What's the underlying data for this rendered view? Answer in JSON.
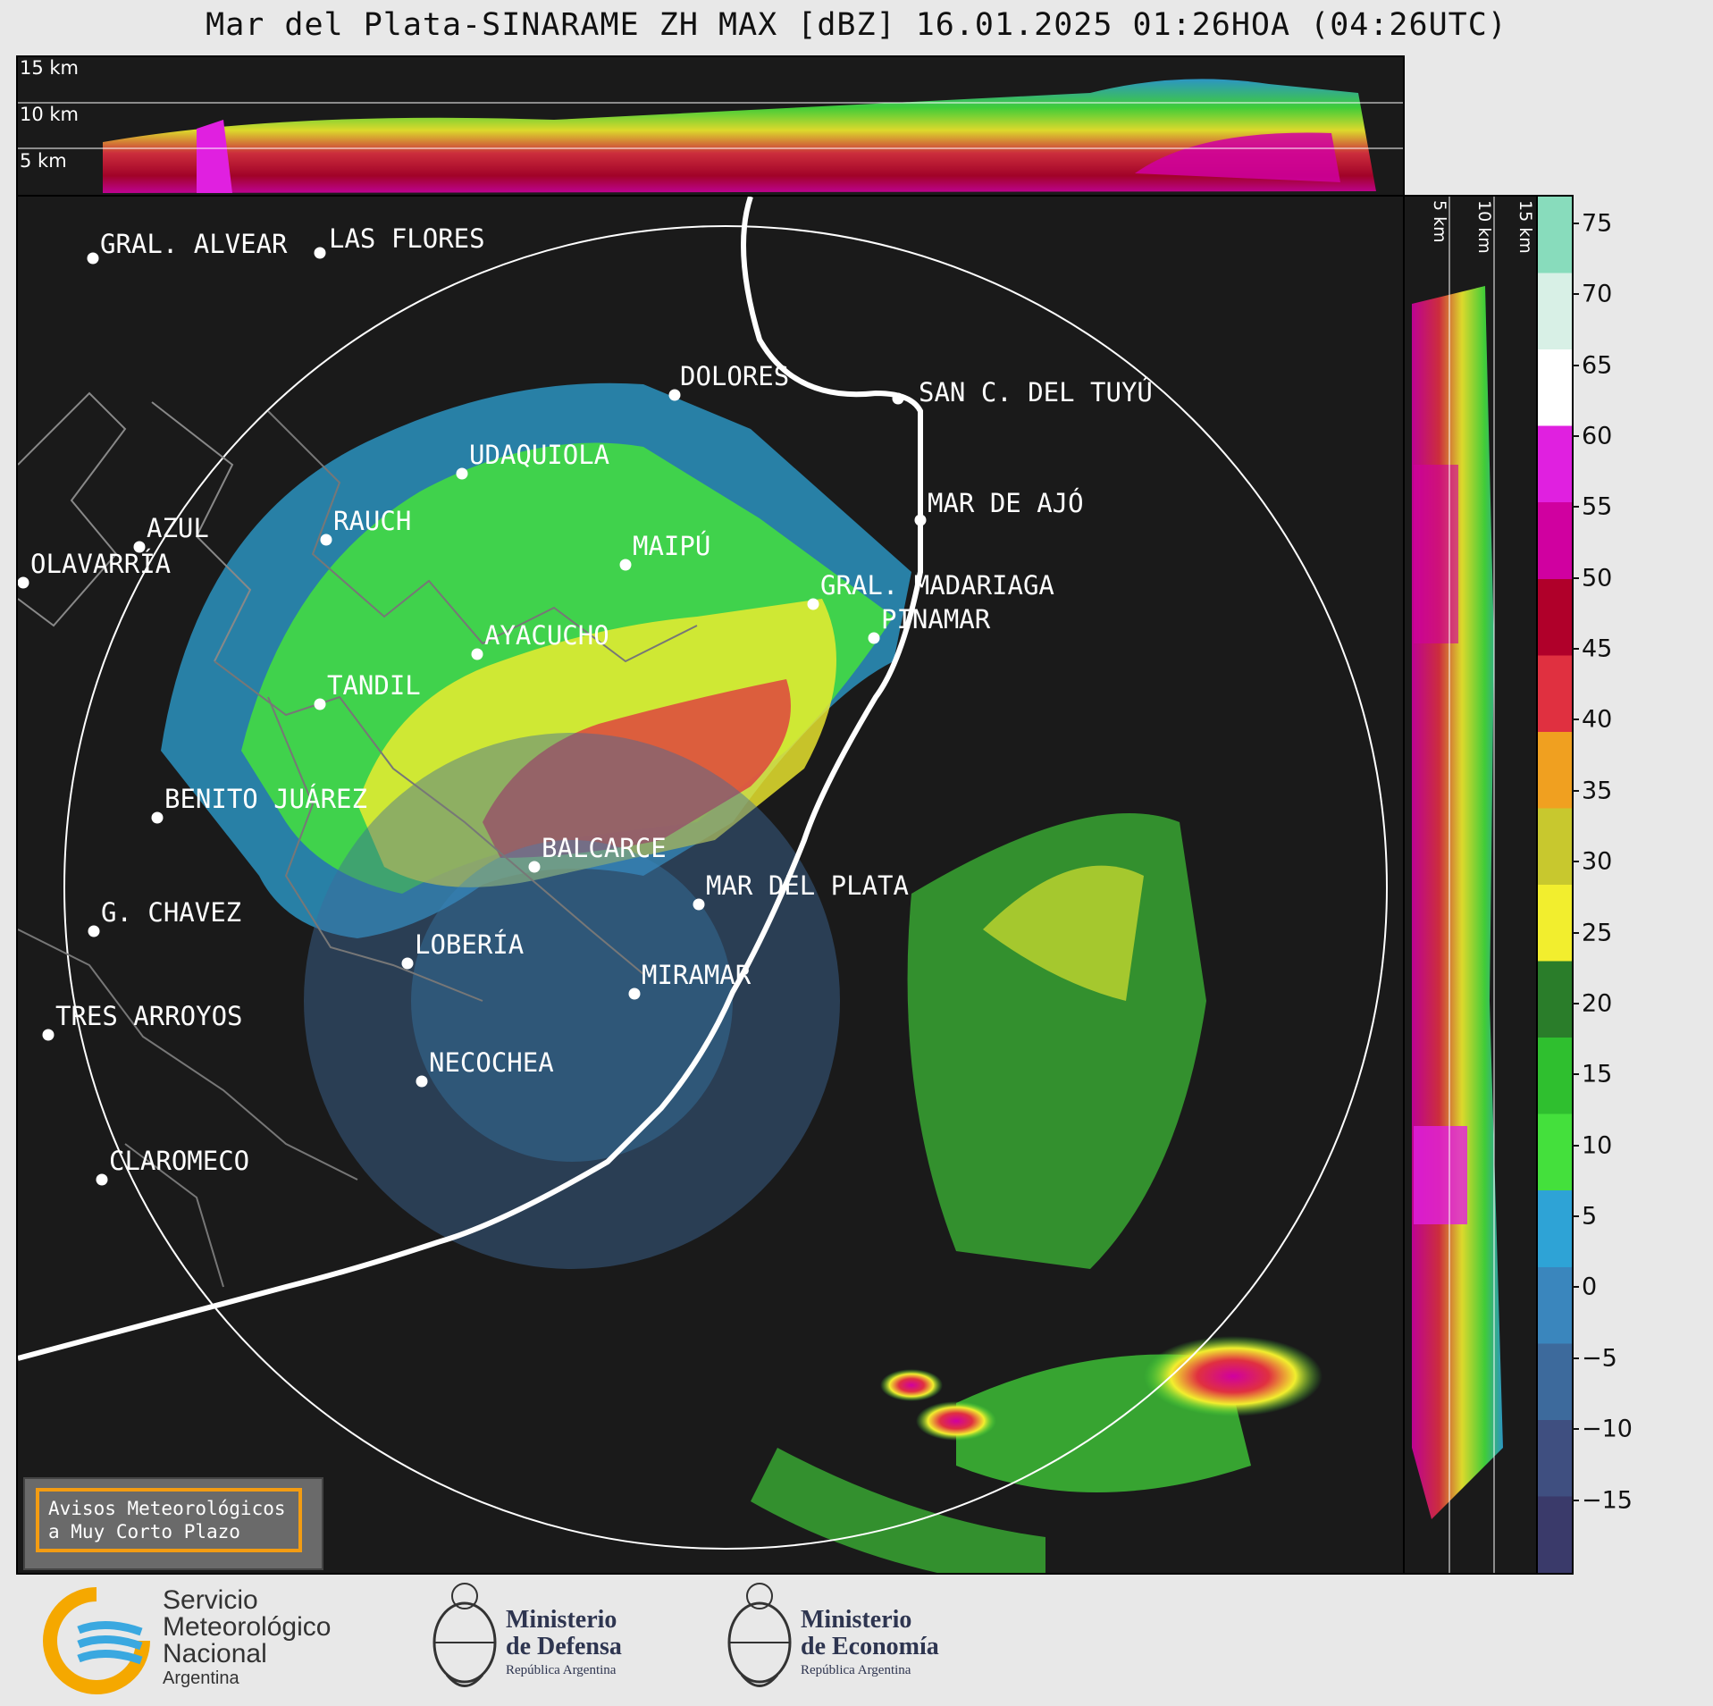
{
  "title": "Mar del Plata-SINARAME ZH MAX [dBZ] 16.01.2025 01:26HOA (04:26UTC)",
  "top_panel": {
    "altitude_labels": [
      "15 km",
      "10 km",
      "5 km"
    ]
  },
  "side_panel": {
    "altitude_labels": [
      "5 km",
      "10 km",
      "15 km"
    ]
  },
  "colorbar": {
    "unit": "dBZ",
    "ticks": [
      "75",
      "70",
      "65",
      "60",
      "55",
      "50",
      "45",
      "40",
      "35",
      "30",
      "25",
      "20",
      "15",
      "10",
      "5",
      "0",
      "−5",
      "−10",
      "−15"
    ],
    "range": [
      -20,
      77
    ],
    "colors": [
      "#3a3a6a",
      "#3f4f80",
      "#3d6a9c",
      "#3a86bd",
      "#2ea3d6",
      "#44e03c",
      "#2fbf2f",
      "#2a7d2a",
      "#f2ee2e",
      "#c8c82e",
      "#f0a020",
      "#e03040",
      "#b0002a",
      "#d000a0",
      "#e020e0",
      "#ffffff",
      "#d8f0e6",
      "#88dcbc"
    ]
  },
  "cities": [
    {
      "name": "GRAL. ALVEAR"
    },
    {
      "name": "LAS FLORES"
    },
    {
      "name": "DOLORES"
    },
    {
      "name": "SAN C. DEL TUYÚ"
    },
    {
      "name": "UDAQUIOLA"
    },
    {
      "name": "MAR DE AJÓ"
    },
    {
      "name": "AZUL"
    },
    {
      "name": "OLAVARRÍA"
    },
    {
      "name": "RAUCH"
    },
    {
      "name": "MAIPÚ"
    },
    {
      "name": "GRAL. MADARIAGA"
    },
    {
      "name": "PINAMAR"
    },
    {
      "name": "AYACUCHO"
    },
    {
      "name": "TANDIL"
    },
    {
      "name": "BENITO JUÁREZ"
    },
    {
      "name": "BALCARCE"
    },
    {
      "name": "MAR DEL PLATA"
    },
    {
      "name": "G. CHAVEZ"
    },
    {
      "name": "LOBERÍA"
    },
    {
      "name": "MIRAMAR"
    },
    {
      "name": "TRES ARROYOS"
    },
    {
      "name": "NECOCHEA"
    },
    {
      "name": "CLAROMECO"
    }
  ],
  "notice": {
    "line1": "Avisos Meteorológicos",
    "line2": "a Muy Corto Plazo"
  },
  "logos": {
    "smn": {
      "line1": "Servicio",
      "line2": "Meteorológico",
      "line3": "Nacional",
      "line4": "Argentina"
    },
    "defensa": {
      "line1": "Ministerio",
      "line2": "de Defensa",
      "line3": "República Argentina"
    },
    "economia": {
      "line1": "Ministerio",
      "line2": "de Economía",
      "line3": "República Argentina"
    }
  }
}
